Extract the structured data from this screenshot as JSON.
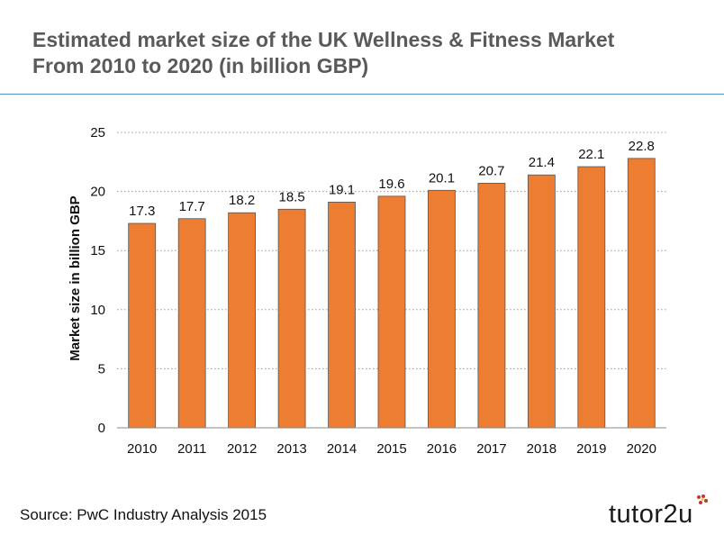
{
  "slide": {
    "title_line1": "Estimated market size of the UK Wellness & Fitness Market",
    "title_line2": "From 2010 to 2020 (in billion GBP)",
    "source": "Source: PwC Industry Analysis 2015",
    "logo": "tutor2u"
  },
  "colors": {
    "bar": "#ED7D31",
    "title": "#5a5a5a",
    "rule": "#5b8fc7",
    "grid": "#9a9a9a"
  },
  "chart_data": {
    "type": "bar",
    "title": "",
    "xlabel": "",
    "ylabel": "Market size in billion GBP",
    "categories": [
      "2010",
      "2011",
      "2012",
      "2013",
      "2014",
      "2015",
      "2016",
      "2017",
      "2018",
      "2019",
      "2020"
    ],
    "values": [
      17.3,
      17.7,
      18.2,
      18.5,
      19.1,
      19.6,
      20.1,
      20.7,
      21.4,
      22.1,
      22.8
    ],
    "value_labels": [
      "17.3",
      "17.7",
      "18.2",
      "18.5",
      "19.1",
      "19.6",
      "20.1",
      "20.7",
      "21.4",
      "22.1",
      "22.8"
    ],
    "yticks": [
      "0",
      "5",
      "10",
      "15",
      "20",
      "25"
    ],
    "ylim": [
      0,
      25
    ],
    "grid": true,
    "grid_style": "dotted",
    "legend": "none"
  }
}
